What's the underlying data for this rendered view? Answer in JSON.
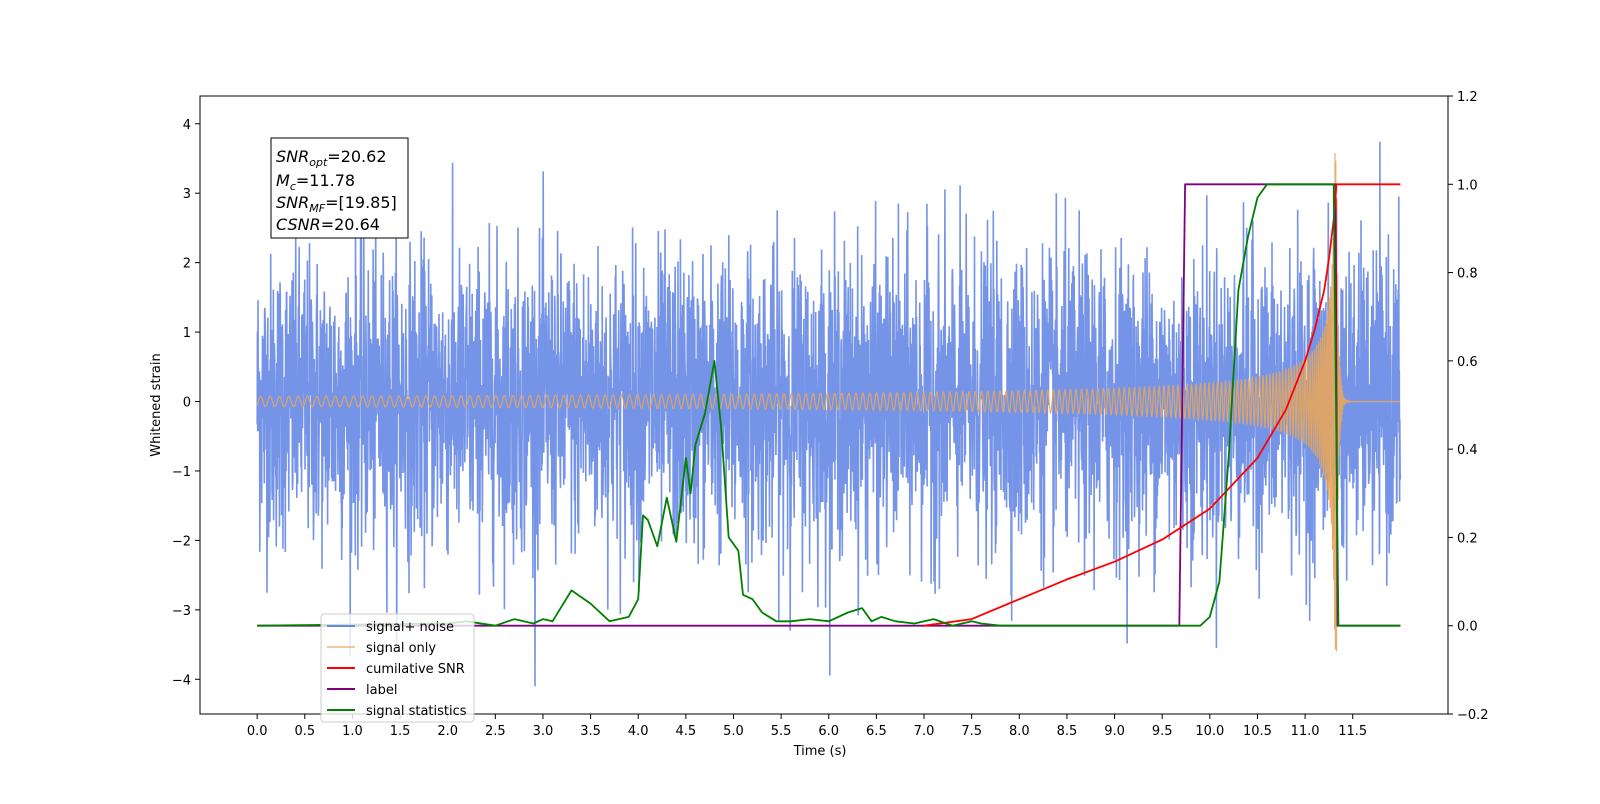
{
  "chart_data": {
    "type": "line",
    "xlabel": "Time (s)",
    "ylabel_left": "Whitened strain",
    "ylabel_right": "",
    "xlim": [
      -0.6,
      12.5
    ],
    "ylim_left": [
      -4.5,
      4.4
    ],
    "ylim_right": [
      -0.2,
      1.2
    ],
    "x_ticks": [
      "0.0",
      "0.5",
      "1.0",
      "1.5",
      "2.0",
      "2.5",
      "3.0",
      "3.5",
      "4.0",
      "4.5",
      "5.0",
      "5.5",
      "6.0",
      "6.5",
      "7.0",
      "7.5",
      "8.0",
      "8.5",
      "9.0",
      "9.5",
      "10.0",
      "10.5",
      "11.0",
      "11.5"
    ],
    "y_ticks_left": [
      "4",
      "3",
      "2",
      "1",
      "0",
      "−1",
      "−2",
      "−3",
      "−4"
    ],
    "y_ticks_right": [
      "1.2",
      "1.0",
      "0.8",
      "0.6",
      "0.4",
      "0.2",
      "0.0",
      "−0.2"
    ],
    "annotation": {
      "snr_opt_label": "SNR",
      "snr_opt_sub": "opt",
      "snr_opt_value": "=20.62",
      "mc_label": "M",
      "mc_sub": "c",
      "mc_value": "=11.78",
      "snr_mf_label": "SNR",
      "snr_mf_sub": "MF",
      "snr_mf_value": "=[19.85]",
      "csnr_label": "CSNR",
      "csnr_value": "=20.64"
    },
    "legend_position": "lower-left",
    "series": [
      {
        "name": "signal+ noise",
        "axis": "left",
        "color": "#6688e6",
        "description": "whitened noisy strain, amplitude roughly -4 to 4 across 0-12 s"
      },
      {
        "name": "signal only",
        "axis": "left",
        "color": "#e6a55c",
        "description": "chirp: frequency and amplitude increase until merger at ~11.33 s, peak amplitude ~3.6"
      },
      {
        "name": "cumilative SNR",
        "axis": "right",
        "color": "#ff0000",
        "x": [
          7.0,
          7.5,
          8.0,
          8.5,
          9.0,
          9.5,
          10.0,
          10.5,
          10.8,
          11.0,
          11.1,
          11.2,
          11.25,
          11.3,
          11.33,
          12.0
        ],
        "y": [
          0.0,
          0.015,
          0.06,
          0.105,
          0.145,
          0.195,
          0.265,
          0.38,
          0.49,
          0.6,
          0.67,
          0.76,
          0.83,
          0.92,
          1.0,
          1.0
        ]
      },
      {
        "name": "label",
        "axis": "right",
        "color": "#800080",
        "x": [
          0.0,
          9.68,
          9.74,
          11.32,
          11.34,
          12.0
        ],
        "y": [
          0.0,
          0.0,
          1.0,
          1.0,
          0.0,
          0.0
        ]
      },
      {
        "name": "signal statistics",
        "axis": "right",
        "color": "#008000",
        "x": [
          0.0,
          2.0,
          2.2,
          2.5,
          2.7,
          2.9,
          3.0,
          3.1,
          3.3,
          3.5,
          3.7,
          3.9,
          4.0,
          4.05,
          4.1,
          4.2,
          4.3,
          4.4,
          4.5,
          4.55,
          4.6,
          4.7,
          4.8,
          4.87,
          4.95,
          5.05,
          5.1,
          5.2,
          5.3,
          5.45,
          5.6,
          5.8,
          6.0,
          6.2,
          6.35,
          6.45,
          6.55,
          6.7,
          6.9,
          7.1,
          7.3,
          7.5,
          7.6,
          7.8,
          8.0,
          9.0,
          9.5,
          9.9,
          10.0,
          10.1,
          10.2,
          10.3,
          10.4,
          10.5,
          10.6,
          11.3,
          11.35,
          12.0
        ],
        "y": [
          0.0,
          0.005,
          0.01,
          0.0,
          0.015,
          0.005,
          0.015,
          0.01,
          0.08,
          0.05,
          0.01,
          0.02,
          0.06,
          0.25,
          0.24,
          0.18,
          0.29,
          0.19,
          0.38,
          0.3,
          0.41,
          0.48,
          0.6,
          0.45,
          0.2,
          0.17,
          0.07,
          0.06,
          0.03,
          0.01,
          0.01,
          0.015,
          0.01,
          0.03,
          0.04,
          0.01,
          0.02,
          0.01,
          0.005,
          0.015,
          0.0,
          0.01,
          0.005,
          0.0,
          0.0,
          0.0,
          0.0,
          0.0,
          0.02,
          0.1,
          0.39,
          0.76,
          0.88,
          0.97,
          1.0,
          1.0,
          0.0,
          0.0
        ]
      }
    ]
  }
}
